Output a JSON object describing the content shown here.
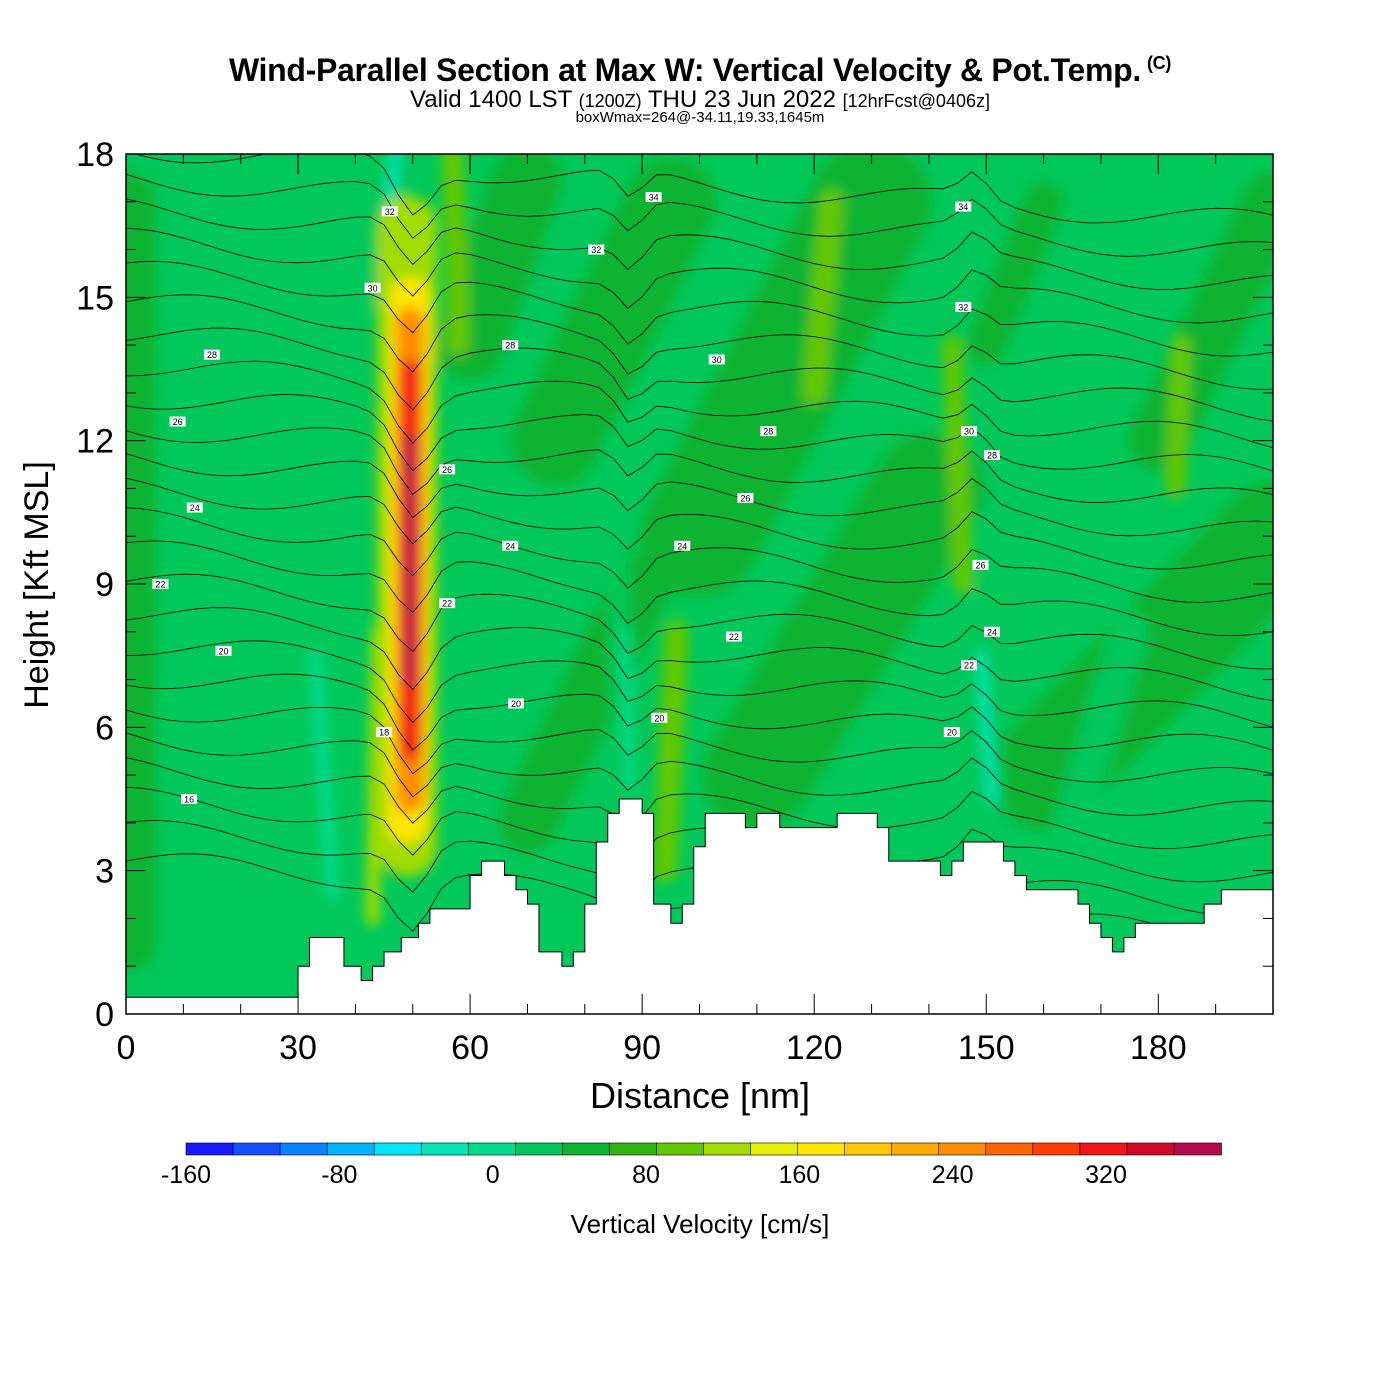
{
  "header": {
    "title": "Wind-Parallel Section at Max W: Vertical Velocity & Pot.Temp.",
    "copyright": "(C)",
    "valid_prefix": "Valid 1400 LST",
    "valid_utc": "(1200Z)",
    "valid_date": "THU 23 Jun 2022",
    "forecast": "[12hrFcst@0406z]",
    "box_info": "boxWmax=264@-34.11,19.33,1645m"
  },
  "chart_data": {
    "type": "heatmap",
    "xlabel": "Distance [nm]",
    "ylabel": "Height [Kft MSL]",
    "xlim": [
      0,
      200
    ],
    "ylim": [
      0,
      18
    ],
    "xticks": [
      0,
      30,
      60,
      90,
      120,
      150,
      180
    ],
    "yticks": [
      0,
      3,
      6,
      9,
      12,
      15,
      18
    ],
    "colorbar": {
      "label": "Vertical Velocity [cm/s]",
      "range": [
        -160,
        380
      ],
      "step": 20,
      "tick_values": [
        -160,
        -80,
        0,
        80,
        160,
        240,
        320
      ],
      "colors": [
        "#1a1aff",
        "#1450ff",
        "#0a82ff",
        "#00b4ff",
        "#00e6ff",
        "#00e6b4",
        "#00dc8c",
        "#00c85a",
        "#10b432",
        "#32b414",
        "#64c800",
        "#a0dc00",
        "#e6f000",
        "#ffe600",
        "#ffc800",
        "#ffaa00",
        "#ff8c00",
        "#ff6400",
        "#ff3c00",
        "#f01414",
        "#d20a28",
        "#b40a4b"
      ]
    },
    "w_max": 264,
    "updraft_core": {
      "x": 49,
      "y": 10.0
    },
    "theta_labels": [
      {
        "text": "34",
        "x": 92,
        "y": 17.1
      },
      {
        "text": "34",
        "x": 146,
        "y": 16.9
      },
      {
        "text": "32",
        "x": 46,
        "y": 16.8
      },
      {
        "text": "32",
        "x": 82,
        "y": 16.0
      },
      {
        "text": "32",
        "x": 146,
        "y": 14.8
      },
      {
        "text": "30",
        "x": 43,
        "y": 15.2
      },
      {
        "text": "30",
        "x": 103,
        "y": 13.7
      },
      {
        "text": "30",
        "x": 147,
        "y": 12.2
      },
      {
        "text": "28",
        "x": 15,
        "y": 13.8
      },
      {
        "text": "28",
        "x": 67,
        "y": 14.0
      },
      {
        "text": "28",
        "x": 112,
        "y": 12.2
      },
      {
        "text": "28",
        "x": 151,
        "y": 11.7
      },
      {
        "text": "26",
        "x": 9,
        "y": 12.4
      },
      {
        "text": "26",
        "x": 56,
        "y": 11.4
      },
      {
        "text": "26",
        "x": 108,
        "y": 10.8
      },
      {
        "text": "26",
        "x": 149,
        "y": 9.4
      },
      {
        "text": "24",
        "x": 12,
        "y": 10.6
      },
      {
        "text": "24",
        "x": 67,
        "y": 9.8
      },
      {
        "text": "24",
        "x": 97,
        "y": 9.8
      },
      {
        "text": "24",
        "x": 151,
        "y": 8.0
      },
      {
        "text": "22",
        "x": 6,
        "y": 9.0
      },
      {
        "text": "22",
        "x": 56,
        "y": 8.6
      },
      {
        "text": "22",
        "x": 106,
        "y": 7.9
      },
      {
        "text": "22",
        "x": 147,
        "y": 7.3
      },
      {
        "text": "20",
        "x": 17,
        "y": 7.6
      },
      {
        "text": "20",
        "x": 68,
        "y": 6.5
      },
      {
        "text": "20",
        "x": 93,
        "y": 6.2
      },
      {
        "text": "20",
        "x": 144,
        "y": 5.9
      },
      {
        "text": "18",
        "x": 45,
        "y": 5.9
      },
      {
        "text": "16",
        "x": 11,
        "y": 4.5
      }
    ],
    "terrain": [
      [
        0,
        0.35
      ],
      [
        30,
        0.35
      ],
      [
        30,
        1.0
      ],
      [
        32,
        1.0
      ],
      [
        32,
        1.6
      ],
      [
        38,
        1.6
      ],
      [
        38,
        1.0
      ],
      [
        41,
        1.0
      ],
      [
        41,
        0.7
      ],
      [
        43,
        0.7
      ],
      [
        43,
        1.0
      ],
      [
        45,
        1.0
      ],
      [
        45,
        1.3
      ],
      [
        48,
        1.3
      ],
      [
        48,
        1.6
      ],
      [
        51,
        1.6
      ],
      [
        51,
        1.9
      ],
      [
        53,
        1.9
      ],
      [
        53,
        2.2
      ],
      [
        60,
        2.2
      ],
      [
        60,
        2.9
      ],
      [
        62,
        2.9
      ],
      [
        62,
        3.2
      ],
      [
        66,
        3.2
      ],
      [
        66,
        2.9
      ],
      [
        68,
        2.9
      ],
      [
        68,
        2.6
      ],
      [
        70,
        2.6
      ],
      [
        70,
        2.3
      ],
      [
        72,
        2.3
      ],
      [
        72,
        1.3
      ],
      [
        76,
        1.3
      ],
      [
        76,
        1.0
      ],
      [
        78,
        1.0
      ],
      [
        78,
        1.3
      ],
      [
        80,
        1.3
      ],
      [
        80,
        2.3
      ],
      [
        82,
        2.3
      ],
      [
        82,
        3.6
      ],
      [
        84,
        3.6
      ],
      [
        84,
        4.2
      ],
      [
        86,
        4.2
      ],
      [
        86,
        4.5
      ],
      [
        90,
        4.5
      ],
      [
        90,
        4.2
      ],
      [
        92,
        4.2
      ],
      [
        92,
        2.3
      ],
      [
        95,
        2.3
      ],
      [
        95,
        1.9
      ],
      [
        97,
        1.9
      ],
      [
        97,
        2.3
      ],
      [
        99,
        2.3
      ],
      [
        99,
        3.5
      ],
      [
        101,
        3.5
      ],
      [
        101,
        4.2
      ],
      [
        108,
        4.2
      ],
      [
        108,
        3.9
      ],
      [
        110,
        3.9
      ],
      [
        110,
        4.2
      ],
      [
        114,
        4.2
      ],
      [
        114,
        3.9
      ],
      [
        124,
        3.9
      ],
      [
        124,
        4.2
      ],
      [
        131,
        4.2
      ],
      [
        131,
        3.9
      ],
      [
        133,
        3.9
      ],
      [
        133,
        3.2
      ],
      [
        142,
        3.2
      ],
      [
        142,
        2.9
      ],
      [
        144,
        2.9
      ],
      [
        144,
        3.2
      ],
      [
        146,
        3.2
      ],
      [
        146,
        3.6
      ],
      [
        153,
        3.6
      ],
      [
        153,
        3.2
      ],
      [
        155,
        3.2
      ],
      [
        155,
        2.9
      ],
      [
        157,
        2.9
      ],
      [
        157,
        2.6
      ],
      [
        166,
        2.6
      ],
      [
        166,
        2.3
      ],
      [
        168,
        2.3
      ],
      [
        168,
        1.9
      ],
      [
        170,
        1.9
      ],
      [
        170,
        1.6
      ],
      [
        172,
        1.6
      ],
      [
        172,
        1.3
      ],
      [
        174,
        1.3
      ],
      [
        174,
        1.6
      ],
      [
        176,
        1.6
      ],
      [
        176,
        1.9
      ],
      [
        188,
        1.9
      ],
      [
        188,
        2.3
      ],
      [
        191,
        2.3
      ],
      [
        191,
        2.6
      ],
      [
        200,
        2.6
      ]
    ]
  }
}
